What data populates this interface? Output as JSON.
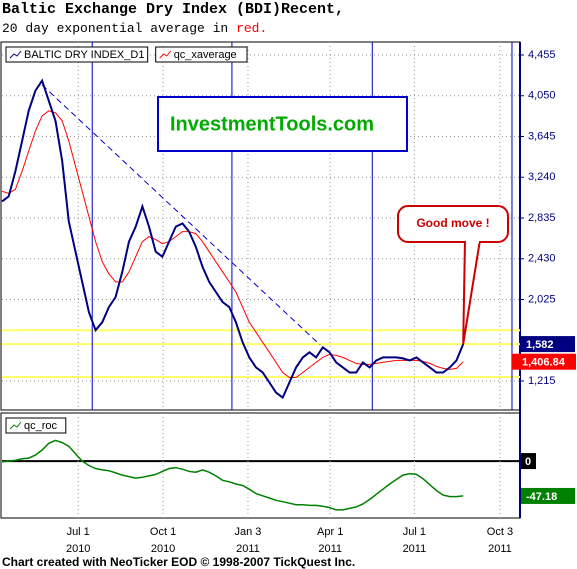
{
  "title": "Baltic Exchange Dry Index (BDI)Recent,",
  "subtitle": "20 day exponential average in",
  "subtitle_highlight": "red.",
  "watermark": "InvestmentTools.com",
  "footer": "Chart created with NeoTicker EOD © 1998-2007 TickQuest Inc.",
  "chart_data": [
    {
      "type": "line",
      "annotation": "Good move !",
      "xlim": [
        0,
        77.5
      ],
      "xticks": [
        {
          "value": 11.4,
          "label": "Jul 1",
          "year": "2010"
        },
        {
          "value": 24.1,
          "label": "Oct 1",
          "year": "2010"
        },
        {
          "value": 36.8,
          "label": "Jan 3",
          "year": "2011"
        },
        {
          "value": 49.1,
          "label": "Apr 1",
          "year": "2011"
        },
        {
          "value": 61.7,
          "label": "Jul 1",
          "year": "2011"
        },
        {
          "value": 74.5,
          "label": "Oct 3",
          "year": "2011"
        }
      ],
      "ylim": [
        927,
        4584
      ],
      "yticks": [
        {
          "value": 1215,
          "label": "1,215"
        },
        {
          "value": 2025,
          "label": "2,025"
        },
        {
          "value": 2430,
          "label": "2,430"
        },
        {
          "value": 2835,
          "label": "2,835"
        },
        {
          "value": 3240,
          "label": "3,240"
        },
        {
          "value": 3645,
          "label": "3,645"
        },
        {
          "value": 4050,
          "label": "4,050"
        },
        {
          "value": 4455,
          "label": "4,455"
        }
      ],
      "grid": true,
      "hlines": [
        1720,
        1582,
        1255
      ],
      "hline_color": "#ffff66",
      "vlines": [
        13.5,
        34.4,
        55.4,
        76.3
      ],
      "vline_color": "#0000cc",
      "trendline": {
        "x": [
          6,
          47.6
        ],
        "y": [
          4157,
          1573
        ],
        "color": "#0000cc"
      },
      "series": [
        {
          "name": "BALTIC DRY INDEX_D1",
          "color": "#000080",
          "end_label": "1,582",
          "values": [
            3000,
            3050,
            3300,
            3600,
            3900,
            4100,
            4200,
            4000,
            3800,
            3400,
            2800,
            2500,
            2200,
            1900,
            1720,
            1800,
            1950,
            2050,
            2300,
            2600,
            2750,
            2950,
            2750,
            2500,
            2450,
            2600,
            2750,
            2780,
            2700,
            2550,
            2350,
            2200,
            2100,
            2000,
            1950,
            1800,
            1600,
            1450,
            1350,
            1300,
            1200,
            1100,
            1050,
            1200,
            1350,
            1450,
            1500,
            1450,
            1550,
            1500,
            1400,
            1350,
            1300,
            1300,
            1400,
            1350,
            1420,
            1450,
            1450,
            1450,
            1440,
            1420,
            1450,
            1400,
            1350,
            1300,
            1300,
            1350,
            1420,
            1582
          ]
        },
        {
          "name": "qc_xaverage",
          "color": "#ff0000",
          "end_label": "1,406.84",
          "values": [
            3100,
            3080,
            3120,
            3300,
            3500,
            3700,
            3850,
            3900,
            3880,
            3800,
            3600,
            3350,
            3100,
            2850,
            2600,
            2400,
            2280,
            2200,
            2200,
            2300,
            2450,
            2600,
            2650,
            2620,
            2580,
            2600,
            2650,
            2700,
            2700,
            2680,
            2600,
            2500,
            2400,
            2300,
            2200,
            2100,
            1950,
            1800,
            1700,
            1600,
            1500,
            1400,
            1300,
            1250,
            1250,
            1300,
            1350,
            1400,
            1450,
            1480,
            1470,
            1450,
            1420,
            1390,
            1380,
            1380,
            1390,
            1400,
            1410,
            1420,
            1420,
            1420,
            1420,
            1410,
            1390,
            1360,
            1340,
            1330,
            1340,
            1406.84
          ]
        }
      ]
    },
    {
      "type": "line",
      "xlim": [
        0,
        77.5
      ],
      "ylim": [
        -77,
        65
      ],
      "yticks": [
        0
      ],
      "series": [
        {
          "name": "qc_roc",
          "color": "#008000",
          "end_label": "-47.18",
          "values": [
            -1,
            0,
            1,
            3,
            4,
            8,
            15,
            24,
            28,
            25,
            20,
            10,
            0,
            -6,
            -10,
            -12,
            -13,
            -16,
            -19,
            -21,
            -23,
            -22,
            -20,
            -18,
            -14,
            -10,
            -9,
            -11,
            -14,
            -15,
            -12,
            -15,
            -20,
            -26,
            -28,
            -31,
            -33,
            -38,
            -44,
            -47,
            -50,
            -53,
            -55,
            -57,
            -59,
            -59,
            -60,
            -60,
            -61,
            -63,
            -66,
            -66,
            -64,
            -62,
            -58,
            -52,
            -45,
            -38,
            -31,
            -25,
            -19,
            -17,
            -18,
            -24,
            -32,
            -40,
            -46,
            -48,
            -48,
            -47.18
          ]
        }
      ]
    }
  ]
}
